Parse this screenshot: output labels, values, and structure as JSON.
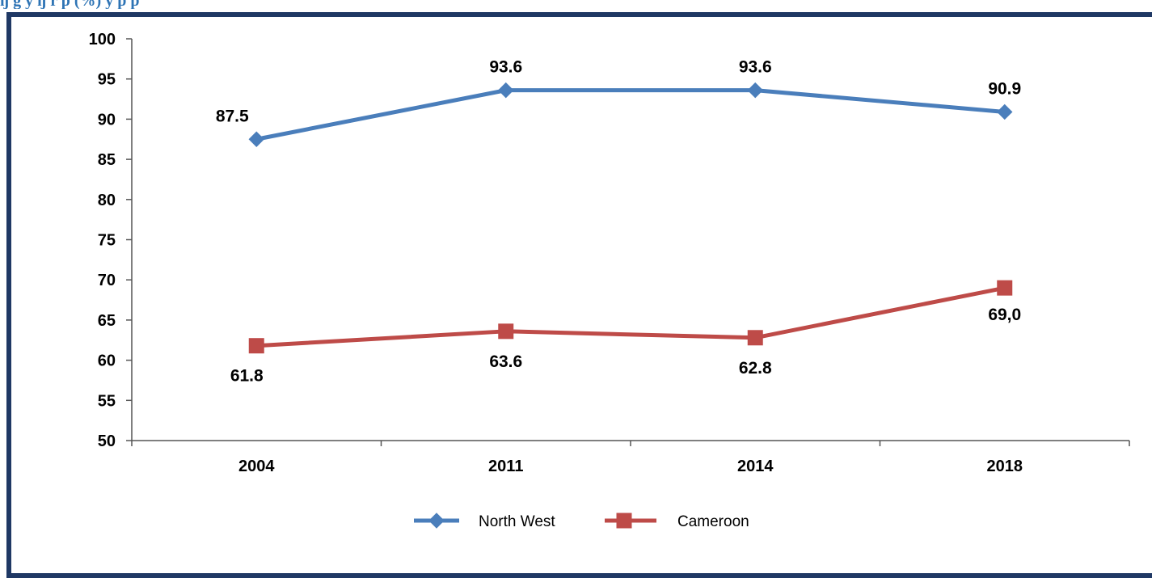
{
  "header": {
    "title_fragment": "ŋ g y ŋ   r  p    (%)                   y p            p"
  },
  "chart_data": {
    "type": "line",
    "categories": [
      "2004",
      "2011",
      "2014",
      "2018"
    ],
    "series": [
      {
        "name": "North West",
        "values": [
          87.5,
          93.6,
          93.6,
          90.9
        ],
        "labels": [
          "87.5",
          "93.6",
          "93.6",
          "90.9"
        ],
        "color": "#4a7ebb",
        "marker": "diamond"
      },
      {
        "name": "Cameroon",
        "values": [
          61.8,
          63.6,
          62.8,
          69.0
        ],
        "labels": [
          "61.8",
          "63.6",
          "62.8",
          "69,0"
        ],
        "color": "#be4b48",
        "marker": "square"
      }
    ],
    "ylim": [
      50,
      100
    ],
    "yticks": [
      "50",
      "55",
      "60",
      "65",
      "70",
      "75",
      "80",
      "85",
      "90",
      "95",
      "100"
    ],
    "legend_position": "bottom",
    "grid": false
  }
}
